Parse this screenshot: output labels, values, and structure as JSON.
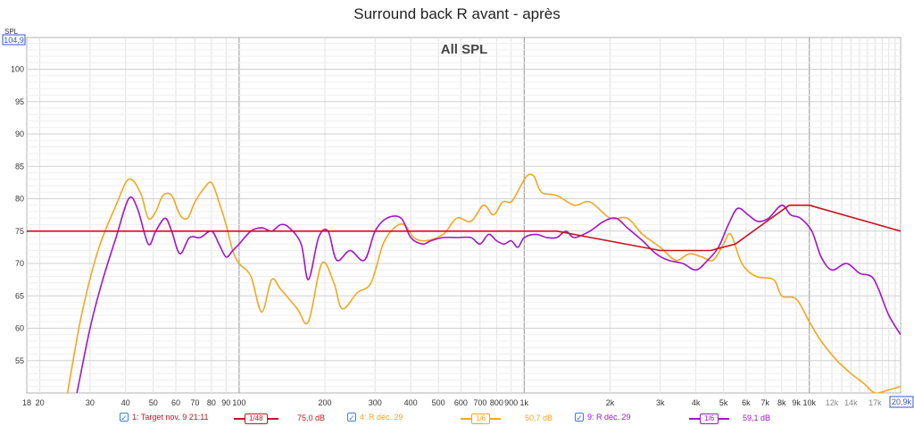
{
  "window": {
    "title": "Surround back R avant - après"
  },
  "colors": {
    "target": "#c8141e",
    "before": "#f5a623",
    "after": "#a016c8",
    "axis_box": "#3355cc",
    "grid": "#d0d0d0",
    "checkbox": "#3c7fd0"
  },
  "chart_data": {
    "type": "line",
    "title": "Surround back R avant - après",
    "inner_title": "All SPL",
    "ylabel": "SPL",
    "xscale": "log",
    "xlim": [
      18,
      20900
    ],
    "ylim": [
      50,
      104.9
    ],
    "x_readout": "20,9k",
    "y_readout": "104,9",
    "y_ticks": [
      55,
      60,
      65,
      70,
      75,
      80,
      85,
      90,
      95,
      100
    ],
    "x_ticks": [
      {
        "v": 18,
        "label": "18"
      },
      {
        "v": 20,
        "label": "20"
      },
      {
        "v": 30,
        "label": "30"
      },
      {
        "v": 40,
        "label": "40"
      },
      {
        "v": 50,
        "label": "50"
      },
      {
        "v": 60,
        "label": "60"
      },
      {
        "v": 70,
        "label": "70"
      },
      {
        "v": 80,
        "label": "80"
      },
      {
        "v": 90,
        "label": "90"
      },
      {
        "v": 100,
        "label": "100"
      },
      {
        "v": 200,
        "label": "200"
      },
      {
        "v": 300,
        "label": "300"
      },
      {
        "v": 400,
        "label": "400"
      },
      {
        "v": 500,
        "label": "500"
      },
      {
        "v": 600,
        "label": "600"
      },
      {
        "v": 700,
        "label": "700"
      },
      {
        "v": 800,
        "label": "800"
      },
      {
        "v": 900,
        "label": "900"
      },
      {
        "v": 1000,
        "label": "1k"
      },
      {
        "v": 2000,
        "label": "2k"
      },
      {
        "v": 3000,
        "label": "3k"
      },
      {
        "v": 4000,
        "label": "4k"
      },
      {
        "v": 5000,
        "label": "5k"
      },
      {
        "v": 6000,
        "label": "6k"
      },
      {
        "v": 7000,
        "label": "7k"
      },
      {
        "v": 8000,
        "label": "8k"
      },
      {
        "v": 9000,
        "label": "9k"
      },
      {
        "v": 10000,
        "label": "10k"
      },
      {
        "v": 12000,
        "label": "12k"
      },
      {
        "v": 14000,
        "label": "14k"
      },
      {
        "v": 17000,
        "label": "17k"
      }
    ],
    "grid": true,
    "series": [
      {
        "name": "1: Target nov. 9 21:11",
        "smoothing": "1/48",
        "value_label": "75,0 dB",
        "color": "#c8141e",
        "points": [
          [
            18,
            75
          ],
          [
            1300,
            75
          ],
          [
            3000,
            72
          ],
          [
            4500,
            72
          ],
          [
            5500,
            73
          ],
          [
            8500,
            79
          ],
          [
            10000,
            79
          ],
          [
            20900,
            75
          ]
        ]
      },
      {
        "name": "4: R déc. 29",
        "smoothing": "1/6",
        "value_label": "50,7 dB",
        "color": "#f5a623",
        "points": [
          [
            25,
            50
          ],
          [
            28,
            62
          ],
          [
            32,
            72
          ],
          [
            37,
            79
          ],
          [
            41,
            83
          ],
          [
            45,
            81
          ],
          [
            48,
            77
          ],
          [
            51,
            78
          ],
          [
            54,
            80.5
          ],
          [
            58,
            80.5
          ],
          [
            62,
            77.5
          ],
          [
            66,
            77
          ],
          [
            70,
            79.5
          ],
          [
            75,
            81.5
          ],
          [
            80,
            82.5
          ],
          [
            85,
            79.5
          ],
          [
            90,
            76
          ],
          [
            95,
            72
          ],
          [
            100,
            70
          ],
          [
            110,
            68
          ],
          [
            120,
            62.5
          ],
          [
            130,
            67.5
          ],
          [
            140,
            66
          ],
          [
            160,
            63
          ],
          [
            175,
            61
          ],
          [
            195,
            70
          ],
          [
            215,
            67
          ],
          [
            230,
            63
          ],
          [
            260,
            65.5
          ],
          [
            290,
            67
          ],
          [
            320,
            73
          ],
          [
            350,
            75.5
          ],
          [
            380,
            76
          ],
          [
            410,
            74
          ],
          [
            450,
            73.5
          ],
          [
            520,
            74.5
          ],
          [
            580,
            77
          ],
          [
            650,
            76.5
          ],
          [
            720,
            79
          ],
          [
            780,
            77.5
          ],
          [
            840,
            79.5
          ],
          [
            900,
            79.5
          ],
          [
            960,
            81.5
          ],
          [
            1020,
            83.5
          ],
          [
            1080,
            83.5
          ],
          [
            1150,
            81
          ],
          [
            1300,
            80.5
          ],
          [
            1500,
            79
          ],
          [
            1700,
            79.5
          ],
          [
            2000,
            77
          ],
          [
            2300,
            77
          ],
          [
            2600,
            74.5
          ],
          [
            3000,
            72.5
          ],
          [
            3400,
            70.5
          ],
          [
            3800,
            71.5
          ],
          [
            4200,
            71
          ],
          [
            4600,
            70.5
          ],
          [
            5000,
            73
          ],
          [
            5300,
            74.5
          ],
          [
            5800,
            70
          ],
          [
            6500,
            68
          ],
          [
            7500,
            67.5
          ],
          [
            8000,
            65
          ],
          [
            9000,
            64.5
          ],
          [
            10000,
            61
          ],
          [
            11000,
            58
          ],
          [
            12500,
            55
          ],
          [
            14000,
            53
          ],
          [
            15500,
            51.5
          ],
          [
            17000,
            50
          ],
          [
            19000,
            50.5
          ],
          [
            20900,
            51
          ]
        ]
      },
      {
        "name": "9: R déc. 29",
        "smoothing": "1/6",
        "value_label": "59,1 dB",
        "color": "#a016c8",
        "points": [
          [
            27,
            50
          ],
          [
            30,
            60
          ],
          [
            33,
            67
          ],
          [
            37,
            74
          ],
          [
            41,
            80
          ],
          [
            44,
            78.5
          ],
          [
            48,
            73
          ],
          [
            51,
            75
          ],
          [
            55,
            77
          ],
          [
            58,
            75
          ],
          [
            62,
            71.5
          ],
          [
            67,
            74
          ],
          [
            73,
            74
          ],
          [
            80,
            75
          ],
          [
            85,
            73
          ],
          [
            90,
            71
          ],
          [
            95,
            72
          ],
          [
            100,
            73
          ],
          [
            110,
            75
          ],
          [
            120,
            75.5
          ],
          [
            130,
            75
          ],
          [
            140,
            76
          ],
          [
            150,
            75.5
          ],
          [
            165,
            73
          ],
          [
            175,
            67.5
          ],
          [
            190,
            74
          ],
          [
            205,
            75
          ],
          [
            220,
            70.5
          ],
          [
            245,
            72
          ],
          [
            275,
            70.5
          ],
          [
            300,
            75
          ],
          [
            330,
            77
          ],
          [
            370,
            77
          ],
          [
            400,
            74
          ],
          [
            440,
            73
          ],
          [
            470,
            73.5
          ],
          [
            520,
            74
          ],
          [
            580,
            74
          ],
          [
            650,
            74
          ],
          [
            700,
            73
          ],
          [
            750,
            74.5
          ],
          [
            800,
            73.5
          ],
          [
            850,
            73
          ],
          [
            900,
            73.5
          ],
          [
            950,
            72.5
          ],
          [
            1000,
            74
          ],
          [
            1100,
            74.5
          ],
          [
            1200,
            74
          ],
          [
            1300,
            74
          ],
          [
            1400,
            75
          ],
          [
            1500,
            74
          ],
          [
            1700,
            75
          ],
          [
            1900,
            76.5
          ],
          [
            2100,
            77
          ],
          [
            2300,
            75.5
          ],
          [
            2600,
            73.5
          ],
          [
            2900,
            71.5
          ],
          [
            3200,
            70.5
          ],
          [
            3600,
            70
          ],
          [
            4000,
            69
          ],
          [
            4400,
            70.5
          ],
          [
            4800,
            72.5
          ],
          [
            5200,
            76
          ],
          [
            5600,
            78.5
          ],
          [
            6100,
            77.5
          ],
          [
            6600,
            76.5
          ],
          [
            7200,
            77
          ],
          [
            8000,
            79
          ],
          [
            8600,
            77.5
          ],
          [
            9300,
            77
          ],
          [
            10200,
            75
          ],
          [
            11000,
            71
          ],
          [
            12000,
            69
          ],
          [
            13500,
            70
          ],
          [
            15000,
            68.5
          ],
          [
            16500,
            68
          ],
          [
            17500,
            66
          ],
          [
            19000,
            62
          ],
          [
            20900,
            59
          ]
        ]
      }
    ]
  },
  "legend": {
    "items": [
      {
        "label": "1: Target nov. 9 21:11",
        "smoothing": "1/48",
        "value": "75,0 dB"
      },
      {
        "label": "4: R déc. 29",
        "smoothing": "1/6",
        "value": "50,7 dB"
      },
      {
        "label": "9: R déc. 29",
        "smoothing": "1/6",
        "value": "59,1 dB"
      }
    ],
    "checkmark": "✓"
  }
}
